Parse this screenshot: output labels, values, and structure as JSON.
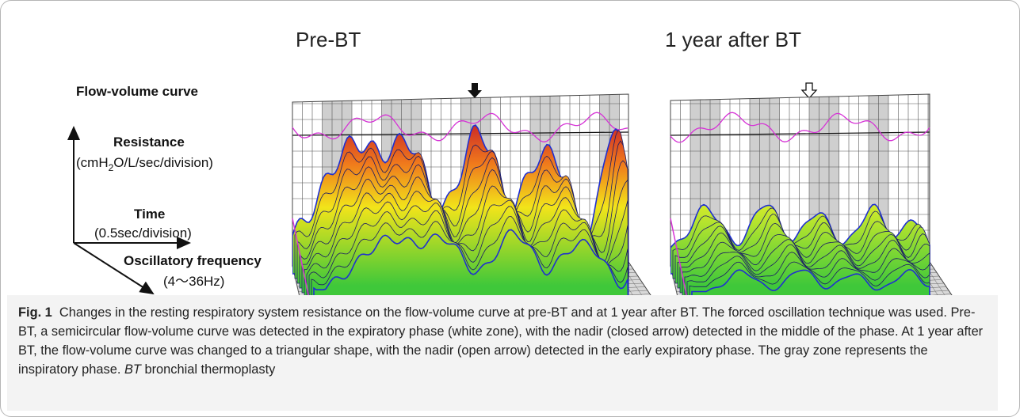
{
  "titles": [
    "Pre-BT",
    "1 year after BT"
  ],
  "axis_labels": {
    "flow_volume": "Flow-volume curve",
    "resistance": "Resistance",
    "resistance_unit": [
      "(cmH",
      "2",
      "O/L/sec/division)"
    ],
    "time": "Time",
    "time_unit": "(0.5sec/division)",
    "frequency": "Oscillatory frequency",
    "frequency_unit": "(4〜36Hz)"
  },
  "caption": {
    "label": "Fig. 1",
    "text": "Changes in the resting respiratory system resistance on the flow-volume curve at pre-BT and at 1 year after BT. The forced oscillation technique was used. Pre-BT, a semicircular flow-volume curve was detected in the expiratory phase (white zone), with the nadir (closed arrow) detected in the middle of the phase. At 1 year after BT, the flow-volume curve was changed to a triangular shape, with the nadir (open arrow) detected in the early expiratory phase. The gray zone represents the inspiratory phase.",
    "abbreviation": "BT",
    "definition": "bronchial thermoplasty"
  }
}
